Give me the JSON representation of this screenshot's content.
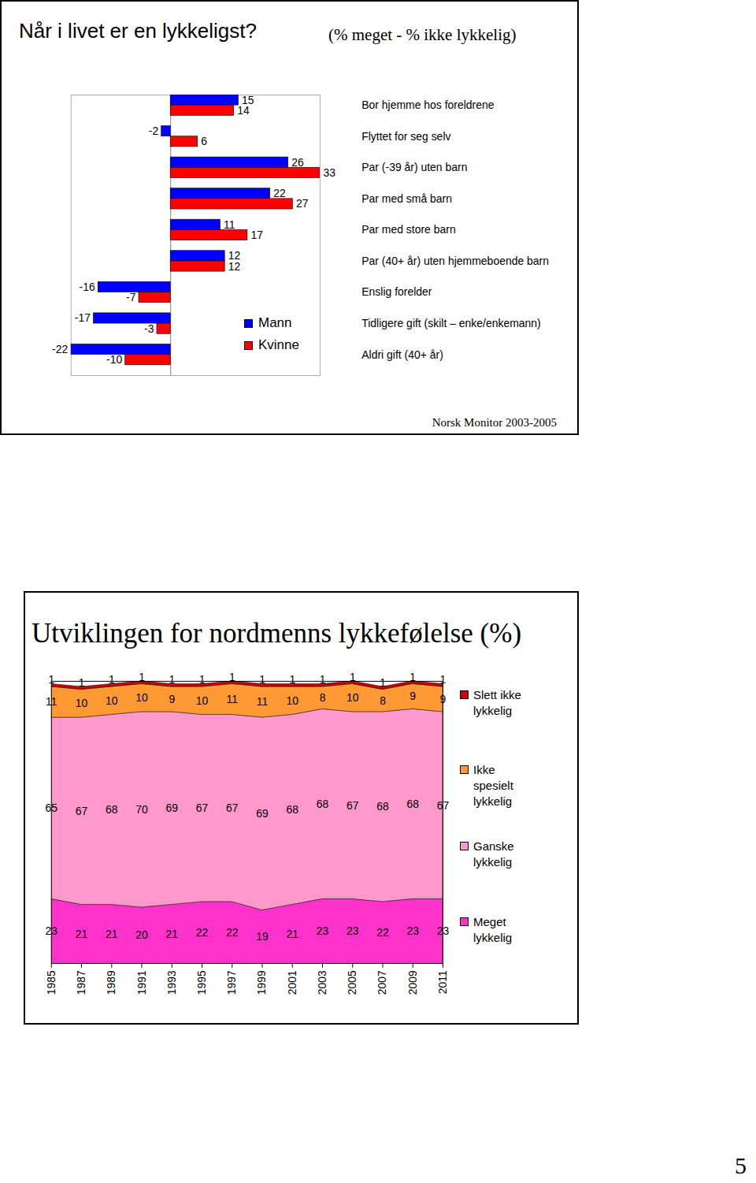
{
  "chart_data": [
    {
      "type": "bar",
      "orientation": "horizontal",
      "title": "Når i livet er en lykkeligst?",
      "subtitle": "(% meget - % ikke lykkelig)",
      "caption": "Norsk Monitor 2003-2005",
      "categories": [
        "Bor hjemme hos foreldrene",
        "Flyttet for seg selv",
        "Par (-39 år) uten barn",
        "Par med små barn",
        "Par med store barn",
        "Par (40+ år) uten hjemmeboende barn",
        "Enslig forelder",
        "Tidligere gift (skilt – enke/enkemann)",
        "Aldri gift (40+ år)"
      ],
      "series": [
        {
          "name": "Mann",
          "color": "#0000ff",
          "values": [
            15,
            -2,
            26,
            22,
            11,
            12,
            -16,
            -17,
            -22
          ]
        },
        {
          "name": "Kvinne",
          "color": "#ff0000",
          "values": [
            14,
            6,
            33,
            27,
            17,
            12,
            -7,
            -3,
            -10
          ]
        }
      ],
      "xlim": [
        -22,
        33
      ],
      "xticks": [
        0
      ],
      "tick_labels": false,
      "data_labels": true,
      "legend": "center"
    },
    {
      "type": "area",
      "stacked": true,
      "title": "Utviklingen for nordmenns lykkefølelse (%)",
      "x": [
        1985,
        1987,
        1989,
        1991,
        1993,
        1995,
        1997,
        1999,
        2001,
        2003,
        2005,
        2007,
        2009,
        2011
      ],
      "xlim": [
        1985,
        2011
      ],
      "xticks": [
        1985,
        1987,
        1989,
        1991,
        1993,
        1995,
        1997,
        1999,
        2001,
        2003,
        2005,
        2007,
        2009,
        2011
      ],
      "ylim": [
        0,
        101
      ],
      "tick_labels": "x",
      "data_labels": true,
      "legend": "right",
      "series": [
        {
          "name": "Meget lykkelig",
          "color": "#ff33cc",
          "values": [
            23,
            21,
            21,
            20,
            21,
            22,
            22,
            19,
            21,
            23,
            23,
            22,
            23,
            23
          ]
        },
        {
          "name": "Ganske lykkelig",
          "color": "#ff99cc",
          "values": [
            65,
            67,
            68,
            70,
            69,
            67,
            67,
            69,
            68,
            68,
            67,
            68,
            68,
            67
          ]
        },
        {
          "name": "Ikke spesielt lykkelig",
          "color": "#ff9933",
          "values": [
            11,
            10,
            10,
            10,
            9,
            10,
            11,
            11,
            10,
            8,
            10,
            8,
            9,
            9
          ]
        },
        {
          "name": "Slett ikke lykkelig",
          "color": "#cc0000",
          "values": [
            1,
            1,
            1,
            1,
            1,
            1,
            1,
            1,
            1,
            1,
            1,
            1,
            1,
            1
          ]
        }
      ]
    }
  ],
  "page_number": "5"
}
